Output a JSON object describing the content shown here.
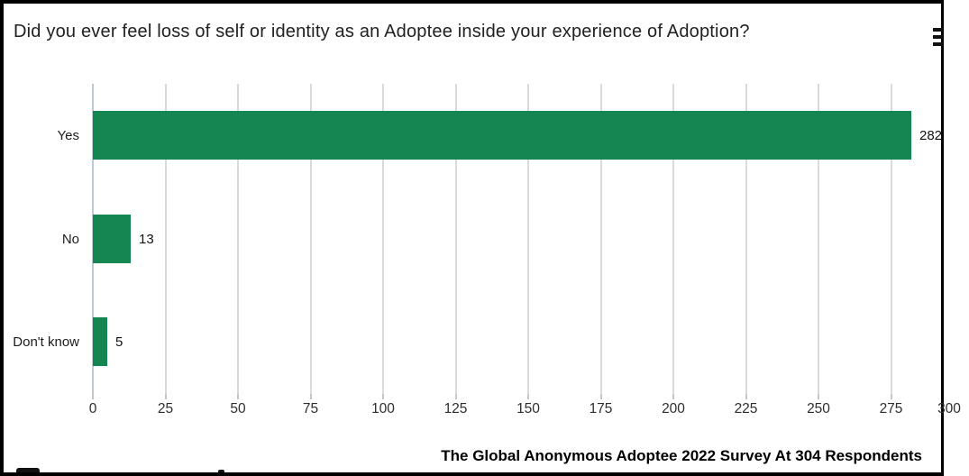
{
  "chart_data": {
    "type": "bar",
    "orientation": "horizontal",
    "title": "Did you ever feel loss of self or identity as an Adoptee inside your experience of Adoption?",
    "categories": [
      "Yes",
      "No",
      "Don't know"
    ],
    "values": [
      282,
      13,
      5
    ],
    "value_labels": [
      "282",
      "13",
      "5"
    ],
    "xticks": [
      0,
      25,
      50,
      75,
      100,
      125,
      150,
      175,
      200,
      225,
      250,
      275,
      300
    ],
    "xlim": [
      0,
      300
    ],
    "grid": true,
    "legend": false,
    "source_note": "The Global Anonymous Adoptee 2022 Survey At 304 Respondents"
  },
  "colors": {
    "bar": "#158552",
    "grid": "#dadada",
    "axis_line": "#bfcbd0",
    "tick_text": "#2e2e2e",
    "label_text": "#1c1c1c",
    "title_text": "#212121",
    "border": "#000000"
  },
  "icons": {
    "menu": "hamburger-menu-icon"
  }
}
